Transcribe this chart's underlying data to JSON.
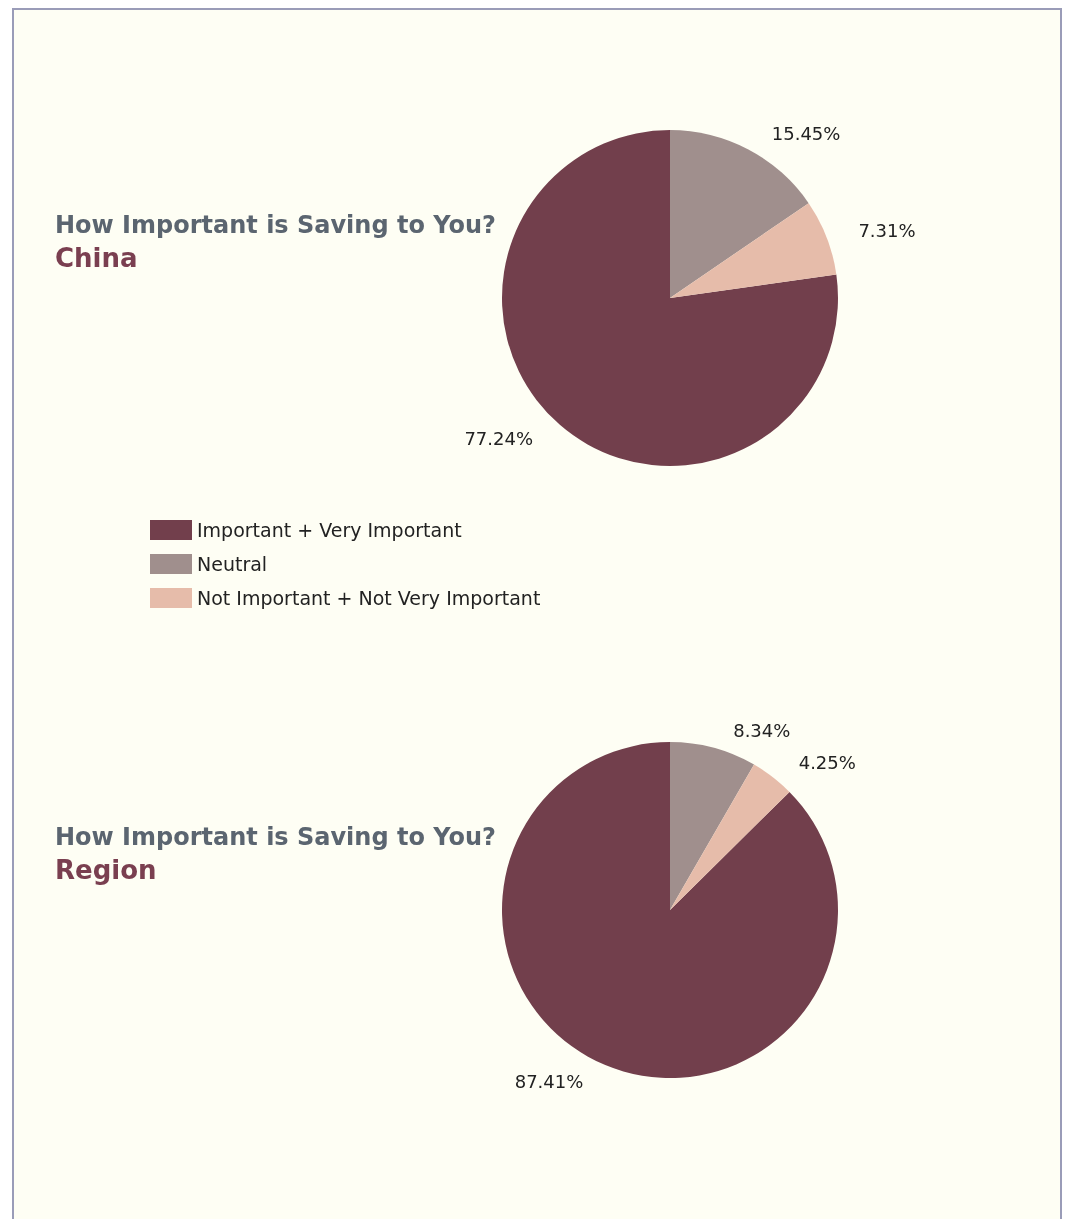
{
  "chart_data": [
    {
      "type": "pie",
      "title": "How Important is Saving to You?",
      "subtitle": "China",
      "categories": [
        "Important + Very Important",
        "Neutral",
        "Not Important + Not Very Important"
      ],
      "values": [
        77.24,
        15.45,
        7.31
      ],
      "value_labels": [
        "77.24%",
        "15.45%",
        "7.31%"
      ],
      "colors": [
        "#723f4c",
        "#a08f8d",
        "#e6bcaa"
      ],
      "legend": "bottom left"
    },
    {
      "type": "pie",
      "title": "How Important is Saving to You?",
      "subtitle": "Region",
      "categories": [
        null,
        null,
        null
      ],
      "values": [
        87.41,
        8.34,
        4.25
      ],
      "value_labels": [
        "87.41%",
        "8.34%",
        "4.25%"
      ],
      "colors": [
        "#723f4c",
        "#a08f8d",
        "#e6bcaa"
      ],
      "legend": false
    }
  ]
}
